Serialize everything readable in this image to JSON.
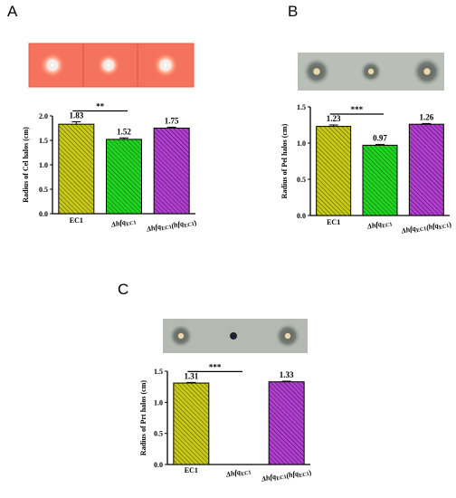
{
  "colors": {
    "yellow": "#c9c919",
    "green": "#22d422",
    "purple": "#b13fcf",
    "axis": "#000000"
  },
  "chart_data": [
    {
      "panel": "A",
      "type": "bar",
      "categories": [
        "EC1",
        "Δhfq_EC1",
        "Δhfq_EC1(hfq_EC1)"
      ],
      "values": [
        1.83,
        1.52,
        1.75
      ],
      "value_labels": [
        "1.83",
        "1.52",
        "1.75"
      ],
      "error": [
        0.05,
        0.03,
        0.02
      ],
      "ylabel": "Radius of Cel halos (cm)",
      "ylim": [
        0,
        2.0
      ],
      "yticks": [
        "0.0",
        "0.5",
        "1.0",
        "1.5",
        "2.0"
      ],
      "ytick_values": [
        0,
        0.5,
        1.0,
        1.5,
        2.0
      ],
      "significance": "**",
      "plate": "red"
    },
    {
      "panel": "B",
      "type": "bar",
      "categories": [
        "EC1",
        "Δhfq_EC1",
        "Δhfq_EC1(hfq_EC1)"
      ],
      "values": [
        1.23,
        0.97,
        1.26
      ],
      "value_labels": [
        "1.23",
        "0.97",
        "1.26"
      ],
      "error": [
        0.02,
        0.01,
        0.01
      ],
      "ylabel": "Radius of Pel halos (cm)",
      "ylim": [
        0,
        1.5
      ],
      "yticks": [
        "0.0",
        "0.5",
        "1.0",
        "1.5"
      ],
      "ytick_values": [
        0,
        0.5,
        1.0,
        1.5
      ],
      "significance": "***",
      "plate": "grey"
    },
    {
      "panel": "C",
      "type": "bar",
      "categories": [
        "EC1",
        "Δhfq_EC1",
        "Δhfq_EC1(hfq_EC1)"
      ],
      "values": [
        1.31,
        0,
        1.33
      ],
      "value_labels": [
        "1.31",
        "",
        "1.33"
      ],
      "error": [
        0.01,
        0,
        0.01
      ],
      "ylabel": "Radius of Prt halos (cm)",
      "ylim": [
        0,
        1.5
      ],
      "yticks": [
        "0.0",
        "0.5",
        "1.0",
        "1.5"
      ],
      "ytick_values": [
        0,
        0.5,
        1.0,
        1.5
      ],
      "significance": "***",
      "plate": "grey"
    }
  ]
}
